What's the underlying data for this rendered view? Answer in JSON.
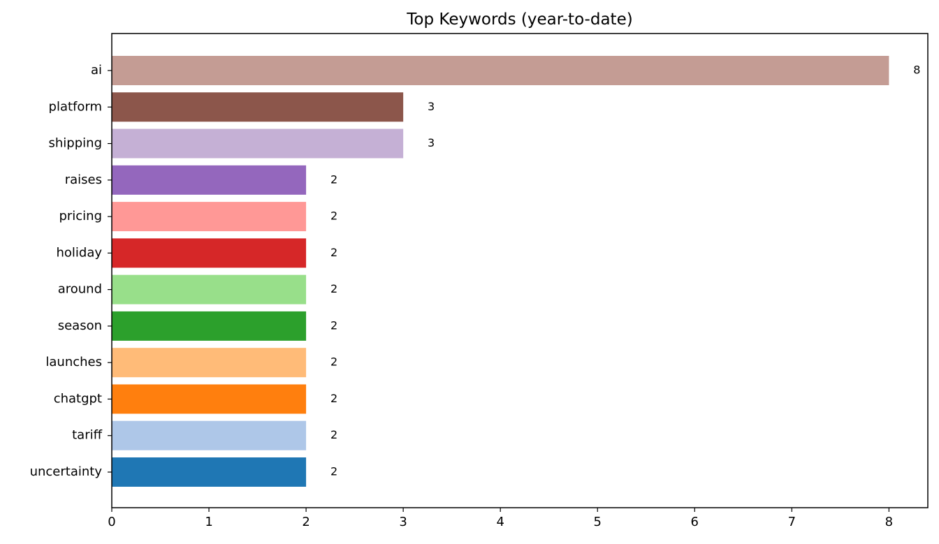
{
  "chart_data": {
    "type": "bar",
    "orientation": "horizontal",
    "title": "Top Keywords (year-to-date)",
    "xlabel": "",
    "ylabel": "",
    "xlim": [
      0,
      8.4
    ],
    "x_ticks": [
      0,
      1,
      2,
      3,
      4,
      5,
      6,
      7,
      8
    ],
    "grid": false,
    "categories": [
      "ai",
      "platform",
      "shipping",
      "raises",
      "pricing",
      "holiday",
      "around",
      "season",
      "launches",
      "chatgpt",
      "tariff",
      "uncertainty"
    ],
    "values": [
      8,
      3,
      3,
      2,
      2,
      2,
      2,
      2,
      2,
      2,
      2,
      2
    ],
    "colors": [
      "#c49c94",
      "#8c564b",
      "#c5b0d5",
      "#9467bd",
      "#ff9896",
      "#d62728",
      "#98df8a",
      "#2ca02c",
      "#ffbb78",
      "#ff7f0e",
      "#aec7e8",
      "#1f77b4"
    ]
  }
}
